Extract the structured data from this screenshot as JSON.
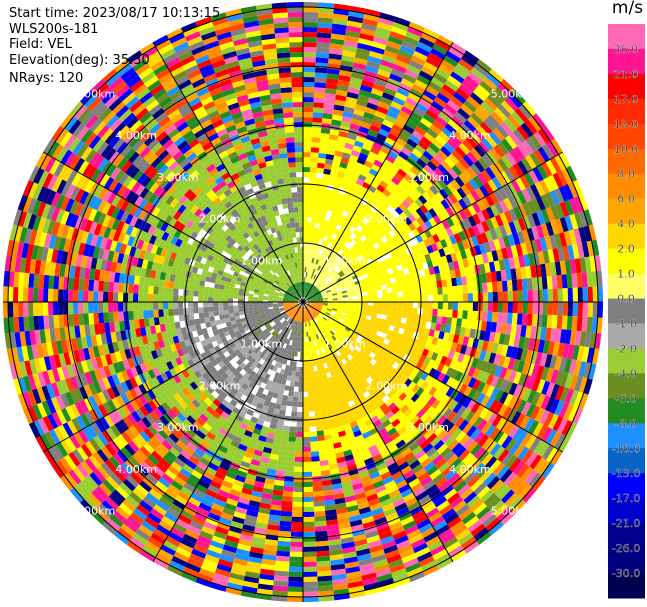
{
  "info": {
    "start_time": "Start time: 2023/08/17 10:13:15",
    "instrument": "WLS200s-181",
    "field": "Field: VEL",
    "elevation": "Elevation(deg): 35.30",
    "nrays": "NRays: 120"
  },
  "range_labels": [
    "1.00km",
    "2.00km",
    "3.00km",
    "4.00km",
    "5.00km"
  ],
  "colorbar": {
    "unit": "m/s",
    "ticks": [
      "26.0",
      "21.0",
      "17.0",
      "13.0",
      "10.0",
      "8.0",
      "6.0",
      "4.0",
      "2.0",
      "1.0",
      "0.0",
      "-1.0",
      "-2.0",
      "-4.0",
      "-6.0",
      "-8.0",
      "-10.0",
      "-13.0",
      "-17.0",
      "-21.0",
      "-26.0",
      "-30.0"
    ],
    "colors": [
      "#ff69b4",
      "#ff1493",
      "#ff0000",
      "#ff2a00",
      "#ff4500",
      "#ff6a00",
      "#ff8c00",
      "#ffa500",
      "#ffd700",
      "#ffff00",
      "#ffff66",
      "#808080",
      "#a9a9a9",
      "#9acd32",
      "#6b8e23",
      "#228b22",
      "#1e90ff",
      "#0a64c8",
      "#0000ff",
      "#0000cd",
      "#00008b",
      "#000080",
      "#000050"
    ]
  }
}
